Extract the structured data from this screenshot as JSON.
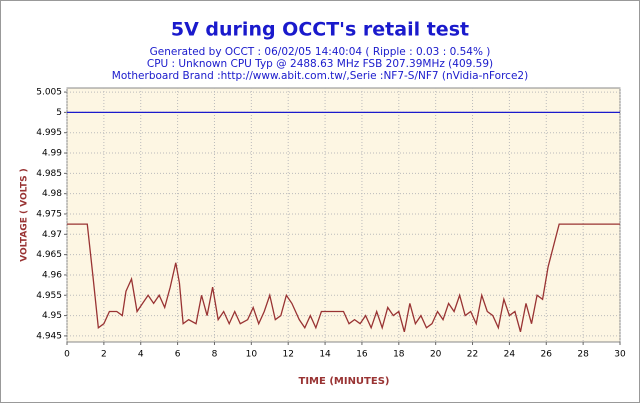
{
  "chart_data": {
    "type": "line",
    "title": "5V during OCCT's retail test",
    "subtitle": [
      "Generated by OCCT : 06/02/05 14:40:04 ( Ripple : 0.03 : 0.54% )",
      "CPU : Unknown CPU Typ @ 2488.63 MHz FSB 207.39MHz (409.59)",
      "Motherboard Brand :http://www.abit.com.tw/,Serie :NF7-S/NF7 (nVidia-nForce2)"
    ],
    "xlabel": "TIME (MINUTES)",
    "ylabel": "VOLTAGE ( VOLTS )",
    "xlim": [
      0,
      30
    ],
    "xticks": [
      0,
      2,
      4,
      6,
      8,
      10,
      12,
      14,
      16,
      18,
      20,
      22,
      24,
      26,
      28,
      30
    ],
    "ylim": [
      4.9435,
      5.006
    ],
    "yticks": [
      4.945,
      4.95,
      4.955,
      4.96,
      4.965,
      4.97,
      4.975,
      4.98,
      4.985,
      4.99,
      4.995,
      5,
      5.005
    ],
    "grid": true,
    "reference_line": {
      "value": 5,
      "color": "#1a1acc"
    },
    "x": [
      0,
      1.1,
      1.4,
      1.7,
      2.0,
      2.3,
      2.7,
      3.0,
      3.2,
      3.5,
      3.8,
      4.1,
      4.4,
      4.7,
      5.0,
      5.3,
      5.6,
      5.9,
      6.1,
      6.3,
      6.6,
      7.0,
      7.3,
      7.6,
      7.9,
      8.2,
      8.5,
      8.8,
      9.1,
      9.4,
      9.8,
      10.1,
      10.4,
      10.7,
      11.0,
      11.3,
      11.6,
      11.9,
      12.2,
      12.6,
      12.9,
      13.2,
      13.5,
      13.8,
      14.5,
      15.0,
      15.3,
      15.6,
      15.9,
      16.2,
      16.5,
      16.8,
      17.1,
      17.4,
      17.7,
      18.0,
      18.3,
      18.6,
      18.9,
      19.2,
      19.5,
      19.8,
      20.1,
      20.4,
      20.7,
      21.0,
      21.3,
      21.6,
      21.9,
      22.2,
      22.5,
      22.8,
      23.1,
      23.4,
      23.7,
      24.0,
      24.3,
      24.6,
      24.9,
      25.2,
      25.5,
      25.8,
      26.1,
      26.7,
      30
    ],
    "series": [
      {
        "color": "#993333",
        "values": [
          4.9725,
          4.9725,
          4.96,
          4.947,
          4.948,
          4.951,
          4.951,
          4.95,
          4.956,
          4.959,
          4.951,
          4.953,
          4.955,
          4.953,
          4.955,
          4.952,
          4.957,
          4.963,
          4.958,
          4.948,
          4.949,
          4.948,
          4.955,
          4.95,
          4.957,
          4.949,
          4.951,
          4.948,
          4.951,
          4.948,
          4.949,
          4.952,
          4.948,
          4.951,
          4.955,
          4.949,
          4.95,
          4.955,
          4.953,
          4.949,
          4.947,
          4.95,
          4.947,
          4.951,
          4.951,
          4.951,
          4.948,
          4.949,
          4.948,
          4.95,
          4.947,
          4.951,
          4.947,
          4.952,
          4.95,
          4.951,
          4.946,
          4.953,
          4.948,
          4.95,
          4.947,
          4.948,
          4.951,
          4.949,
          4.953,
          4.951,
          4.955,
          4.95,
          4.951,
          4.948,
          4.955,
          4.951,
          4.95,
          4.947,
          4.954,
          4.95,
          4.951,
          4.946,
          4.953,
          4.948,
          4.955,
          4.954,
          4.962,
          4.9725,
          4.9725
        ]
      }
    ]
  }
}
